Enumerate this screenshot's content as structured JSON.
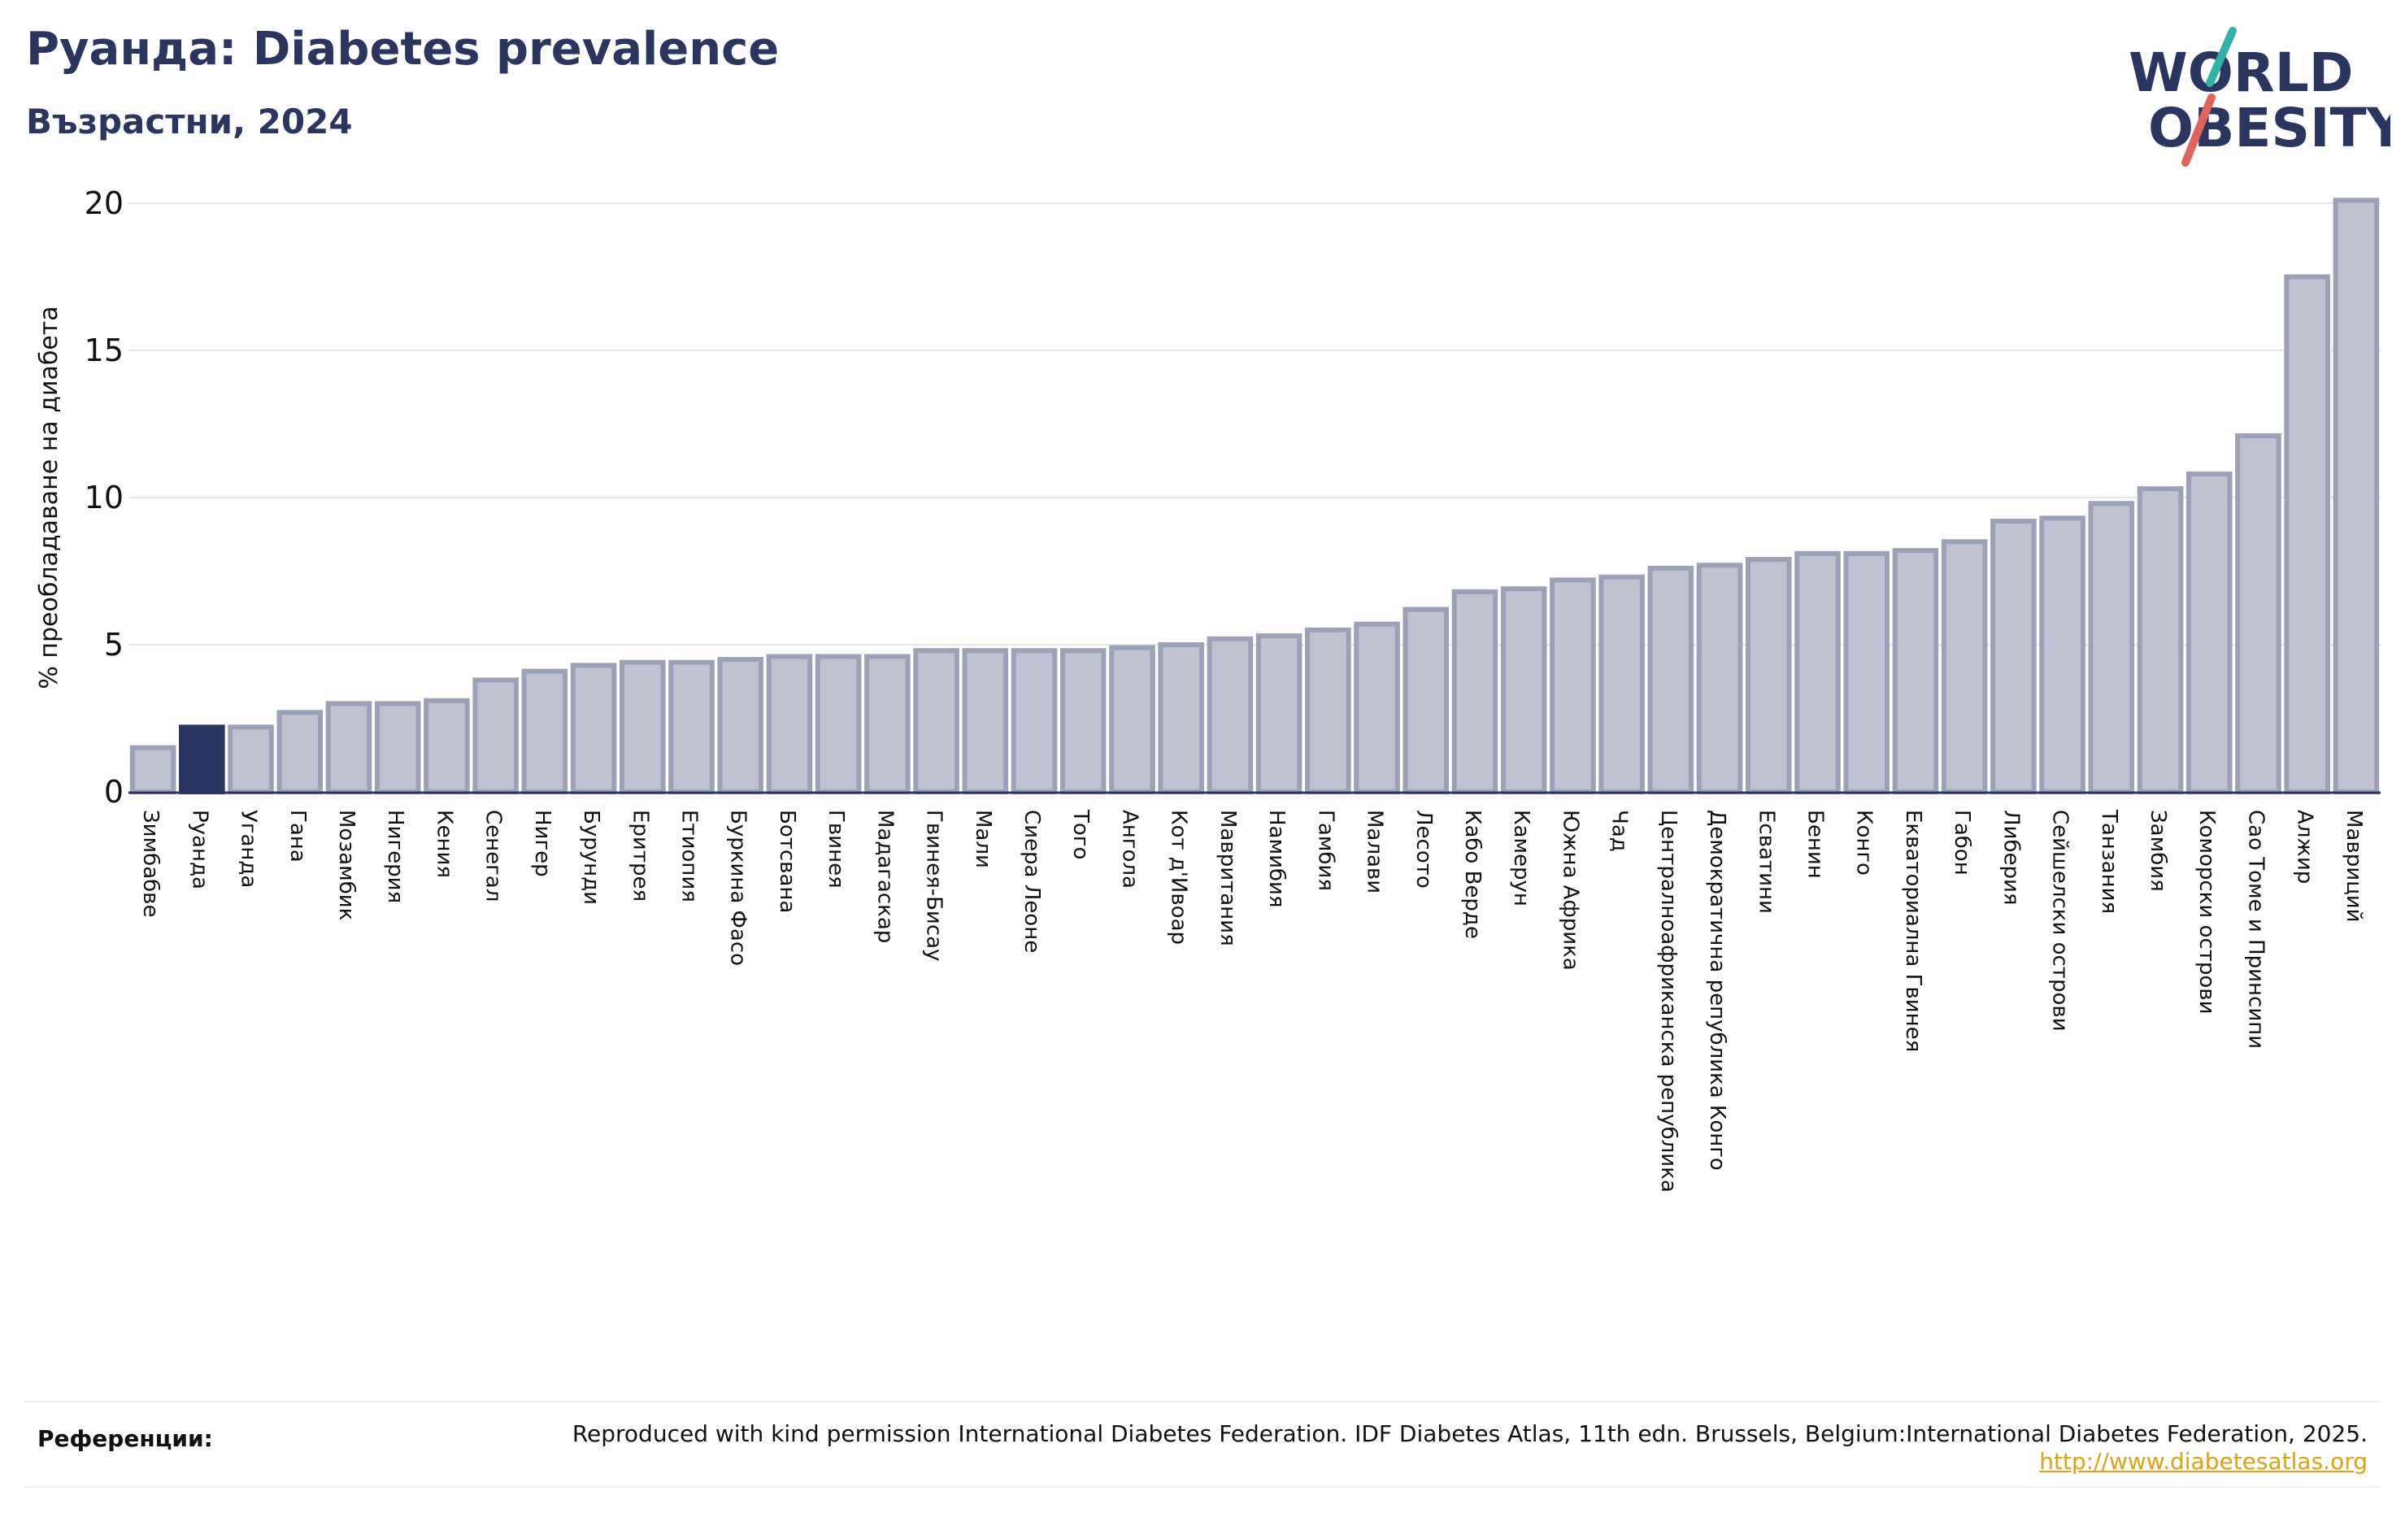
{
  "header": {
    "title": "Руанда: Diabetes prevalence",
    "subtitle": "Възрастни, 2024"
  },
  "logo": {
    "line1": "WORLD",
    "line2": "OBESITY",
    "colors": {
      "text": "#2b3660",
      "slash_teal": "#2fb3a8",
      "slash_red": "#e0645a"
    }
  },
  "colors": {
    "bar_fill": "#bfc2d0",
    "bar_stroke": "#9da1b8",
    "highlight": "#2b3660",
    "grid": "#e6e6e6",
    "axis": "#2b3660",
    "text": "#111111"
  },
  "chart_data": {
    "type": "bar",
    "ylabel": "% преобладаване на диабета",
    "ylim": [
      0,
      20
    ],
    "yticks": [
      0,
      5,
      10,
      15,
      20
    ],
    "grid": true,
    "highlight": "Руанда",
    "categories": [
      "Зимбабве",
      "Руанда",
      "Уганда",
      "Гана",
      "Мозамбик",
      "Нигерия",
      "Кения",
      "Сенегал",
      "Нигер",
      "Бурунди",
      "Еритрея",
      "Етиопия",
      "Буркина Фасо",
      "Ботсвана",
      "Гвинея",
      "Мадагаскар",
      "Гвинея-Бисау",
      "Мали",
      "Сиера Леоне",
      "Того",
      "Ангола",
      "Кот д'Ивоар",
      "Мавритания",
      "Намибия",
      "Гамбия",
      "Малави",
      "Лесото",
      "Кабо Верде",
      "Камерун",
      "Южна Африка",
      "Чад",
      "Централноафриканска република",
      "Демократична република Конго",
      "Есватини",
      "Бенин",
      "Конго",
      "Екваториална Гвинея",
      "Габон",
      "Либерия",
      "Сейшелски острови",
      "Танзания",
      "Замбия",
      "Коморски острови",
      "Сао Томе и Принсипи",
      "Алжир",
      "Мавриций"
    ],
    "values": [
      1.5,
      2.2,
      2.2,
      2.7,
      3.0,
      3.0,
      3.1,
      3.8,
      4.1,
      4.3,
      4.4,
      4.4,
      4.5,
      4.6,
      4.6,
      4.6,
      4.8,
      4.8,
      4.8,
      4.8,
      4.9,
      5.0,
      5.2,
      5.3,
      5.5,
      5.7,
      6.2,
      6.8,
      6.9,
      7.2,
      7.3,
      7.6,
      7.7,
      7.9,
      8.1,
      8.1,
      8.2,
      8.5,
      9.2,
      9.3,
      9.8,
      10.3,
      10.8,
      12.1,
      17.5,
      20.1
    ]
  },
  "references": {
    "label": "Референции:",
    "text": "Reproduced with kind permission International Diabetes Federation. IDF Diabetes Atlas, 11th edn. Brussels, Belgium:International Diabetes Federation, 2025.",
    "link": "http://www.diabetesatlas.org"
  }
}
